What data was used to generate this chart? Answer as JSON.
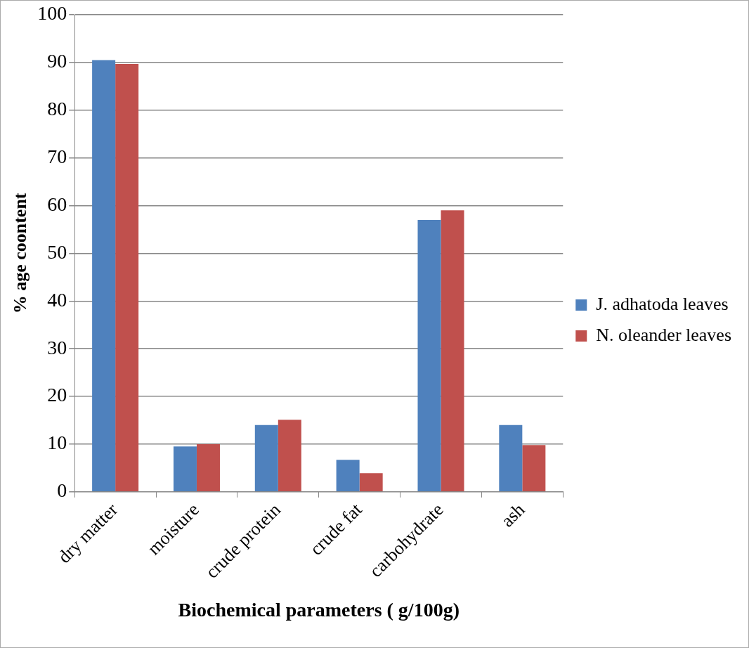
{
  "chart_data": {
    "type": "bar",
    "xlabel": "Biochemical parameters ( g/100g)",
    "ylabel": "% age coontent",
    "categories": [
      "dry matter",
      "moisture",
      "crude protein",
      "crude fat",
      "carbohydrate",
      "ash"
    ],
    "series": [
      {
        "name": "J. adhatoda leaves",
        "color": "#4f81bd",
        "values": [
          90.5,
          9.5,
          14,
          6.7,
          57,
          14
        ]
      },
      {
        "name": "N. oleander leaves",
        "color": "#c0504d",
        "values": [
          89.7,
          10,
          15.1,
          3.9,
          59,
          9.8
        ]
      }
    ],
    "ylim": [
      0,
      100
    ],
    "yticks": [
      0,
      10,
      20,
      30,
      40,
      50,
      60,
      70,
      80,
      90,
      100
    ],
    "grid": "y",
    "legend": "right"
  }
}
